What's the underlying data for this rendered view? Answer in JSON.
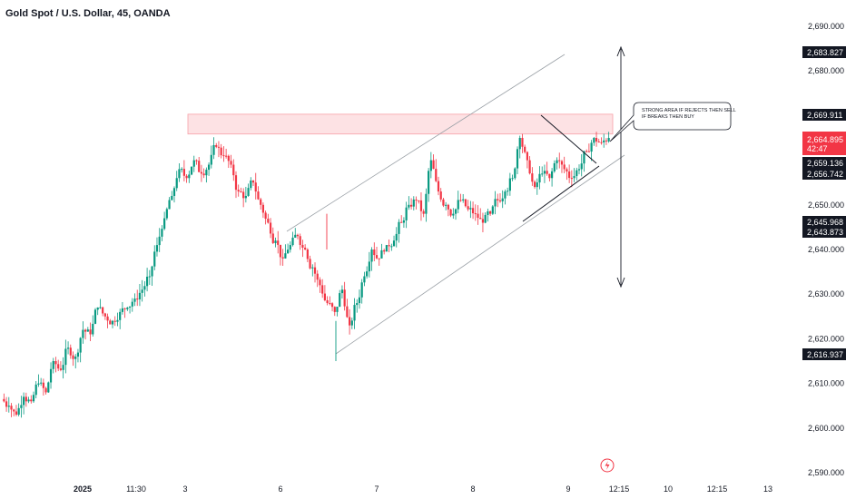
{
  "title": "Gold Spot / U.S. Dollar, 45, OANDA",
  "colors": {
    "up": "#089981",
    "down": "#f23645",
    "zone_fill": "#fde2e4",
    "zone_stroke": "#f7a1a8",
    "label_bg": "#131722",
    "current_bg": "#f23645",
    "event_icon": "#f23645"
  },
  "icons": {
    "event": "lightning-icon"
  },
  "annotation": {
    "text_line1": "STRONG AREA IF REJECTS THEN SELL",
    "text_line2": "IF BREAKS THEN BUY"
  },
  "price_labels": [
    {
      "text": "2,683.827",
      "kind": "marker"
    },
    {
      "text": "2,669.911",
      "kind": "marker"
    },
    {
      "text": "2,664.895",
      "kind": "current",
      "sub": "42:47"
    },
    {
      "text": "2,659.136",
      "kind": "marker"
    },
    {
      "text": "2,656.742",
      "kind": "marker"
    },
    {
      "text": "2,645.968",
      "kind": "marker"
    },
    {
      "text": "2,643.873",
      "kind": "marker"
    },
    {
      "text": "2,616.937",
      "kind": "marker"
    }
  ],
  "chart_data": {
    "type": "candlestick",
    "title": "Gold Spot / U.S. Dollar, 45, OANDA",
    "y_axis": {
      "ticks": [
        2590,
        2600,
        2610,
        2620,
        2630,
        2640,
        2650,
        2660,
        2670,
        2680,
        2690
      ],
      "tick_labels": [
        "2,590.000",
        "2,600.000",
        "2,610.000",
        "2,620.000",
        "2,630.000",
        "2,640.000",
        "2,650.000",
        "2,660.000",
        "2,670.000",
        "2,680.000",
        "2,690.000"
      ],
      "position": "right"
    },
    "x_axis": {
      "ticks": [
        {
          "label": "2025",
          "bold": true
        },
        {
          "label": "11:30"
        },
        {
          "label": "3"
        },
        {
          "label": "6"
        },
        {
          "label": "7"
        },
        {
          "label": "8"
        },
        {
          "label": "9"
        },
        {
          "label": "12:15"
        },
        {
          "label": "10"
        },
        {
          "label": "12:15"
        },
        {
          "label": "13"
        }
      ]
    },
    "grid": false,
    "resistance_zone": [
      2667.5,
      2669.9
    ],
    "channel": {
      "lower": [
        [
          0,
          2618
        ],
        [
          100,
          2656
        ]
      ],
      "upper": [
        [
          0,
          2638
        ],
        [
          100,
          2688
        ]
      ]
    },
    "close_path": [
      2605,
      2603,
      2607,
      2606,
      2610,
      2608,
      2615,
      2613,
      2618,
      2616,
      2622,
      2621,
      2627,
      2625,
      2624,
      2626,
      2627,
      2629,
      2631,
      2634,
      2641,
      2647,
      2652,
      2658,
      2656,
      2660,
      2657,
      2659,
      2663,
      2661,
      2659,
      2653,
      2652,
      2655,
      2650,
      2646,
      2642,
      2638,
      2641,
      2643,
      2640,
      2636,
      2632,
      2628,
      2626,
      2631,
      2623,
      2628,
      2634,
      2640,
      2638,
      2641,
      2642,
      2646,
      2650,
      2651,
      2648,
      2660,
      2653,
      2650,
      2648,
      2651,
      2649,
      2648,
      2646,
      2648,
      2651,
      2653,
      2656,
      2665,
      2660,
      2654,
      2657,
      2656,
      2660,
      2658,
      2656,
      2658,
      2662,
      2665,
      2664,
      2665
    ],
    "wicks": [
      {
        "at": 0.64,
        "low": 2616.9
      },
      {
        "at": 0.87,
        "high": 2667.8
      }
    ]
  }
}
